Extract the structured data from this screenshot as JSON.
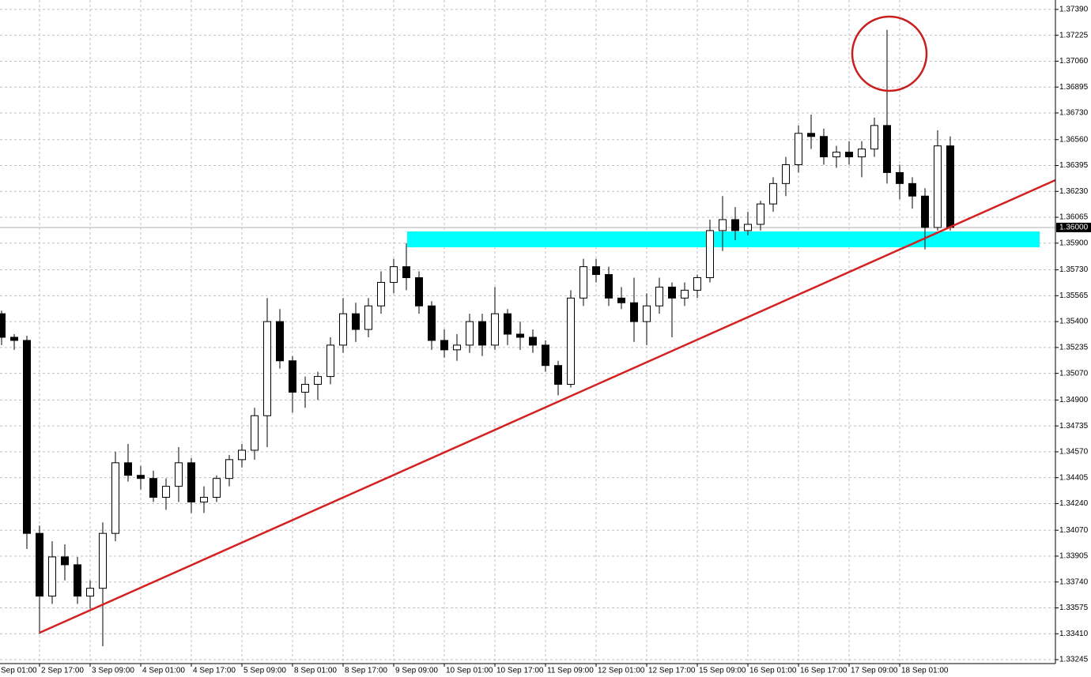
{
  "chart_data": {
    "type": "candlestick",
    "categories": [
      "Sep 01:00",
      null,
      null,
      null,
      "2 Sep 17:00",
      null,
      null,
      null,
      "3 Sep 09:00",
      null,
      null,
      null,
      "4 Sep 01:00",
      null,
      null,
      null,
      "4 Sep 17:00",
      null,
      null,
      null,
      "5 Sep 09:00",
      null,
      null,
      null,
      "8 Sep 01:00",
      null,
      null,
      null,
      "8 Sep 17:00",
      null,
      null,
      null,
      "9 Sep 09:00",
      null,
      null,
      null,
      "10 Sep 01:00",
      null,
      null,
      null,
      "10 Sep 17:00",
      null,
      null,
      null,
      "11 Sep 09:00",
      null,
      null,
      null,
      "12 Sep 01:00",
      null,
      null,
      null,
      "12 Sep 17:00",
      null,
      null,
      null,
      "15 Sep 09:00",
      null,
      null,
      null,
      "16 Sep 01:00",
      null,
      null,
      null,
      "16 Sep 17:00",
      null,
      null,
      null,
      "17 Sep 09:00",
      null,
      null,
      null,
      "18 Sep 01:00",
      null,
      null,
      null,
      null
    ],
    "open": [
      null,
      1.3545,
      1.353,
      1.3528,
      1.3405,
      1.3365,
      1.339,
      1.3385,
      1.3365,
      1.337,
      1.3405,
      1.345,
      1.3442,
      1.344,
      1.3428,
      1.3435,
      1.345,
      1.3425,
      1.3428,
      1.344,
      1.3452,
      1.3458,
      1.348,
      1.354,
      1.3515,
      1.3495,
      1.35,
      1.3505,
      1.3525,
      1.3545,
      1.3535,
      1.355,
      1.3565,
      1.3575,
      1.3568,
      1.355,
      1.3528,
      1.3522,
      1.3525,
      1.354,
      1.3525,
      1.3545,
      1.3532,
      1.353,
      1.3525,
      1.3512,
      1.35,
      1.3555,
      1.3575,
      1.357,
      1.3555,
      1.3552,
      1.354,
      1.355,
      1.3562,
      1.3555,
      1.356,
      1.3568,
      1.3598,
      1.3605,
      1.3598,
      1.3602,
      1.3615,
      1.3628,
      1.364,
      1.366,
      1.3658,
      1.3645,
      1.3648,
      1.3645,
      1.365,
      1.3665,
      1.3635,
      1.3628,
      1.362,
      1.36,
      1.3652
    ],
    "high": [
      null,
      1.3547,
      1.3532,
      1.3531,
      1.341,
      1.34,
      1.3398,
      1.339,
      1.3375,
      1.3412,
      1.3457,
      1.3462,
      1.3448,
      1.3445,
      1.344,
      1.346,
      1.3453,
      1.3435,
      1.3442,
      1.3455,
      1.3462,
      1.3485,
      1.3555,
      1.3548,
      1.3518,
      1.3505,
      1.3508,
      1.353,
      1.3555,
      1.3552,
      1.3555,
      1.3572,
      1.358,
      1.359,
      1.3572,
      1.3553,
      1.3535,
      1.3532,
      1.3545,
      1.3545,
      1.3562,
      1.3548,
      1.354,
      1.3535,
      1.3528,
      1.3515,
      1.356,
      1.358,
      1.358,
      1.3575,
      1.3562,
      1.3568,
      1.3558,
      1.3568,
      1.3565,
      1.3565,
      1.357,
      1.3605,
      1.362,
      1.3613,
      1.361,
      1.3617,
      1.3632,
      1.3645,
      1.3665,
      1.3672,
      1.3663,
      1.3652,
      1.3655,
      1.3655,
      1.367,
      1.3726,
      1.364,
      1.3632,
      1.3625,
      1.3662,
      1.3658
    ],
    "low": [
      null,
      1.3525,
      1.3522,
      1.3395,
      1.3341,
      1.336,
      1.3375,
      1.336,
      1.3357,
      1.3333,
      1.34,
      1.3438,
      1.3433,
      1.3425,
      1.342,
      1.3425,
      1.3418,
      1.3418,
      1.3425,
      1.3435,
      1.3447,
      1.3452,
      1.346,
      1.351,
      1.3482,
      1.3485,
      1.349,
      1.35,
      1.352,
      1.3527,
      1.353,
      1.3545,
      1.3558,
      1.356,
      1.3545,
      1.3522,
      1.3517,
      1.3515,
      1.352,
      1.3518,
      1.3522,
      1.3525,
      1.3522,
      1.352,
      1.3508,
      1.3493,
      1.3498,
      1.355,
      1.3565,
      1.355,
      1.3548,
      1.3527,
      1.3525,
      1.3545,
      1.353,
      1.355,
      1.3555,
      1.3565,
      1.3585,
      1.3592,
      1.3595,
      1.3598,
      1.361,
      1.362,
      1.3635,
      1.365,
      1.364,
      1.3638,
      1.364,
      1.3632,
      1.3645,
      1.3628,
      1.3618,
      1.3612,
      1.3586,
      1.3598,
      1.3598
    ],
    "close": [
      null,
      1.353,
      1.3528,
      1.3405,
      1.3365,
      1.339,
      1.3385,
      1.3365,
      1.337,
      1.3405,
      1.345,
      1.3442,
      1.344,
      1.3428,
      1.3435,
      1.345,
      1.3425,
      1.3428,
      1.344,
      1.3452,
      1.3458,
      1.348,
      1.354,
      1.3515,
      1.3495,
      1.35,
      1.3505,
      1.3525,
      1.3545,
      1.3535,
      1.355,
      1.3565,
      1.3575,
      1.3568,
      1.355,
      1.3528,
      1.3522,
      1.3525,
      1.354,
      1.3525,
      1.3545,
      1.3532,
      1.353,
      1.3525,
      1.3512,
      1.35,
      1.3555,
      1.3575,
      1.357,
      1.3555,
      1.3552,
      1.354,
      1.355,
      1.3562,
      1.3555,
      1.356,
      1.3568,
      1.3598,
      1.3605,
      1.3598,
      1.3602,
      1.3615,
      1.3628,
      1.364,
      1.366,
      1.3658,
      1.3645,
      1.3648,
      1.3645,
      1.365,
      1.3665,
      1.3635,
      1.3628,
      1.362,
      1.36,
      1.3652,
      1.36
    ],
    "up_color": "#ffffff",
    "down_color": "#000000",
    "outline_color": "#000000",
    "ylim": [
      1.3322,
      1.3745
    ],
    "yticks": [
      {
        "value": 1.3739,
        "label": "1.37390"
      },
      1.37225,
      {
        "value": 1.3706,
        "label": "1.37060"
      },
      1.36895,
      {
        "value": 1.3673,
        "label": "1.36730"
      },
      {
        "value": 1.3656,
        "label": "1.36560"
      },
      1.36395,
      {
        "value": 1.3623,
        "label": "1.36230"
      },
      1.36065,
      {
        "value": 1.359,
        "label": "1.35900"
      },
      {
        "value": 1.3573,
        "label": "1.35730"
      },
      1.35565,
      {
        "value": 1.354,
        "label": "1.35400"
      },
      1.35235,
      {
        "value": 1.3507,
        "label": "1.35070"
      },
      {
        "value": 1.349,
        "label": "1.34900"
      },
      1.34735,
      {
        "value": 1.3457,
        "label": "1.34570"
      },
      1.34405,
      {
        "value": 1.3424,
        "label": "1.34240"
      },
      {
        "value": 1.3407,
        "label": "1.34070"
      },
      1.33905,
      {
        "value": 1.3374,
        "label": "1.33740"
      },
      1.33575,
      {
        "value": 1.3341,
        "label": "1.33410"
      },
      1.33245
    ],
    "current_price": {
      "value": 1.36,
      "label": "1.36000"
    },
    "grid": true
  }
}
